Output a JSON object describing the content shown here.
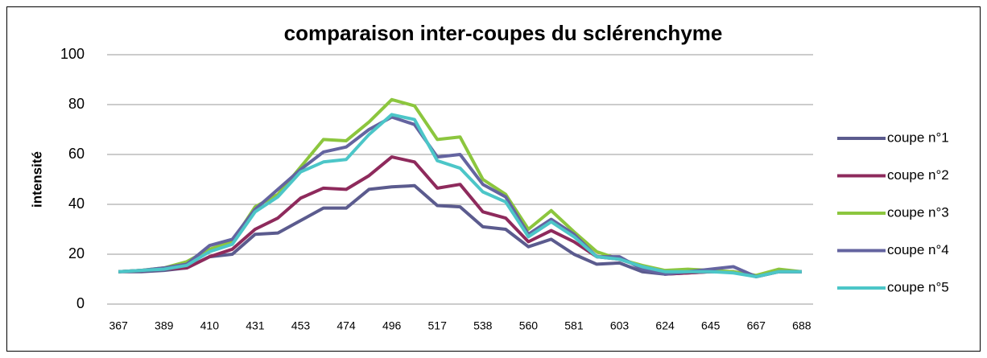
{
  "chart_data": {
    "type": "line",
    "title": "comparaison inter-coupes du sclérenchyme",
    "y_label": "intensité",
    "categories": [
      "367",
      null,
      "389",
      null,
      "410",
      null,
      "431",
      null,
      "453",
      null,
      "474",
      null,
      "496",
      null,
      "517",
      null,
      "538",
      null,
      "560",
      null,
      "581",
      null,
      "603",
      null,
      "624",
      null,
      "645",
      null,
      "667",
      null,
      "688"
    ],
    "ylim": [
      0,
      100
    ],
    "yticks": [
      0,
      20,
      40,
      60,
      80,
      100
    ],
    "grid": true,
    "legend": "right",
    "series": [
      {
        "name": "coupe n°1",
        "color": "#5b5b8e",
        "values": [
          13,
          13,
          13.5,
          14.5,
          19,
          20,
          28,
          28.5,
          33.5,
          38.5,
          38.5,
          46,
          47,
          47.5,
          39.5,
          39,
          31,
          30,
          23,
          26,
          20,
          16,
          16.5,
          13,
          12,
          12.5,
          13,
          13,
          11,
          13,
          13
        ]
      },
      {
        "name": "coupe n°2",
        "color": "#8e2a5c",
        "values": [
          13,
          13.5,
          14,
          14.5,
          19,
          22,
          30,
          34.5,
          42.5,
          46.5,
          46,
          51.5,
          59,
          57,
          46.5,
          48,
          37,
          34.5,
          25,
          29.5,
          25,
          19,
          18,
          15,
          12,
          12.5,
          13,
          13,
          11,
          13,
          13
        ]
      },
      {
        "name": "coupe n°3",
        "color": "#8cc63e",
        "values": [
          13,
          13.5,
          14.5,
          17,
          22,
          25,
          39,
          44,
          55,
          66,
          65.5,
          73,
          82,
          79.5,
          66,
          67,
          50,
          44,
          30,
          37.5,
          29,
          21,
          18,
          15.5,
          13.5,
          14,
          13.5,
          13,
          11.5,
          14,
          13
        ]
      },
      {
        "name": "coupe n°4",
        "color": "#6464a0",
        "values": [
          13,
          13.5,
          14.5,
          16,
          23.5,
          26,
          38,
          46,
          54,
          61,
          63,
          70,
          75,
          72,
          59,
          60,
          48,
          43,
          28,
          34,
          28,
          19,
          19,
          14,
          12,
          13,
          14,
          15,
          11,
          13,
          13
        ]
      },
      {
        "name": "coupe n°5",
        "color": "#4cc6c8",
        "values": [
          13,
          13.5,
          14,
          15.5,
          21,
          24,
          37,
          43,
          53,
          57,
          58,
          68,
          76,
          74,
          57.5,
          54.5,
          45,
          41,
          27,
          33,
          27,
          19,
          18,
          15,
          13,
          13,
          13,
          12.5,
          11,
          13,
          13
        ]
      }
    ]
  }
}
